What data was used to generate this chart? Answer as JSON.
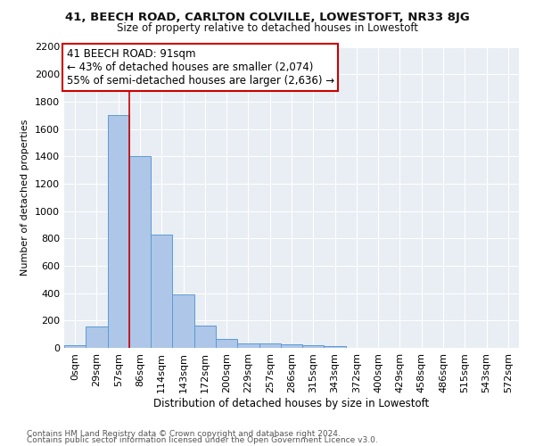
{
  "title1": "41, BEECH ROAD, CARLTON COLVILLE, LOWESTOFT, NR33 8JG",
  "title2": "Size of property relative to detached houses in Lowestoft",
  "xlabel": "Distribution of detached houses by size in Lowestoft",
  "ylabel": "Number of detached properties",
  "footer1": "Contains HM Land Registry data © Crown copyright and database right 2024.",
  "footer2": "Contains public sector information licensed under the Open Government Licence v3.0.",
  "annotation_line1": "41 BEECH ROAD: 91sqm",
  "annotation_line2": "← 43% of detached houses are smaller (2,074)",
  "annotation_line3": "55% of semi-detached houses are larger (2,636) →",
  "bar_labels": [
    "0sqm",
    "29sqm",
    "57sqm",
    "86sqm",
    "114sqm",
    "143sqm",
    "172sqm",
    "200sqm",
    "229sqm",
    "257sqm",
    "286sqm",
    "315sqm",
    "343sqm",
    "372sqm",
    "400sqm",
    "429sqm",
    "458sqm",
    "486sqm",
    "515sqm",
    "543sqm",
    "572sqm"
  ],
  "bar_values": [
    20,
    155,
    1700,
    1400,
    830,
    390,
    165,
    65,
    30,
    30,
    25,
    20,
    15,
    0,
    0,
    0,
    0,
    0,
    0,
    0,
    0
  ],
  "bar_color": "#aec6e8",
  "bar_edge_color": "#5b9bd5",
  "red_line_x": 2.5,
  "red_line_color": "#cc0000",
  "background_color": "#e8eef4",
  "ylim": [
    0,
    2200
  ],
  "yticks": [
    0,
    200,
    400,
    600,
    800,
    1000,
    1200,
    1400,
    1600,
    1800,
    2000,
    2200
  ],
  "annotation_box_color": "#ffffff",
  "annotation_box_edge": "#cc0000",
  "title1_fontsize": 9.5,
  "title2_fontsize": 8.5,
  "ylabel_fontsize": 8.0,
  "xlabel_fontsize": 8.5,
  "tick_fontsize": 8.0,
  "annotation_fontsize": 8.5,
  "footer_fontsize": 6.5
}
